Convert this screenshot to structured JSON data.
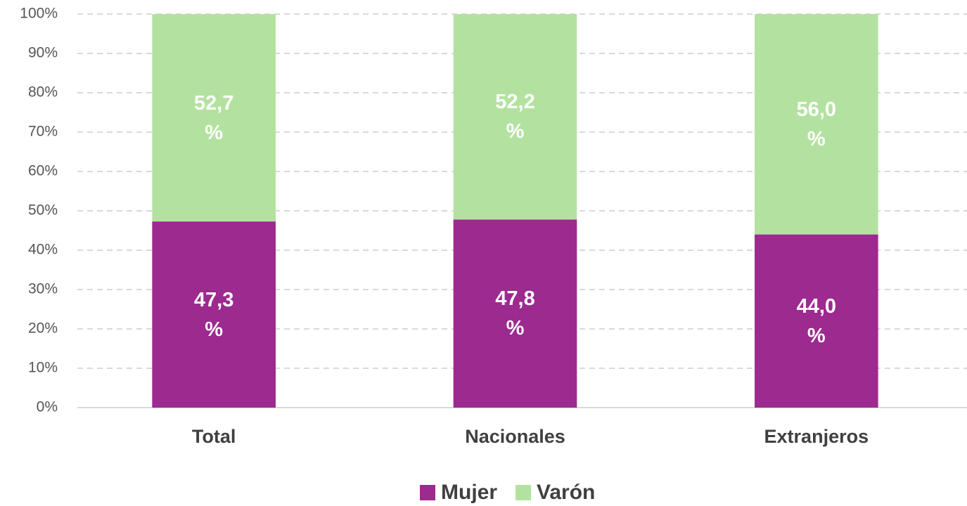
{
  "chart_data": {
    "type": "stacked_bar",
    "categories": [
      "Total",
      "Nacionales",
      "Extranjeros"
    ],
    "series": [
      {
        "name": "Mujer",
        "color": "#9c2a8f",
        "values": [
          47.3,
          47.8,
          44.0
        ],
        "value_labels": [
          "47,3 %",
          "47,8 %",
          "44,0 %"
        ]
      },
      {
        "name": "Varón",
        "color": "#b3e2a0",
        "values": [
          52.7,
          52.2,
          56.0
        ],
        "value_labels": [
          "52,7 %",
          "52,2 %",
          "56,0 %"
        ]
      }
    ],
    "ylim": [
      0,
      100
    ],
    "yticks": [
      {
        "value": 0,
        "label": "0%"
      },
      {
        "value": 10,
        "label": "10%"
      },
      {
        "value": 20,
        "label": "20%"
      },
      {
        "value": 30,
        "label": "30%"
      },
      {
        "value": 40,
        "label": "40%"
      },
      {
        "value": 50,
        "label": "50%"
      },
      {
        "value": 60,
        "label": "60%"
      },
      {
        "value": 70,
        "label": "70%"
      },
      {
        "value": 80,
        "label": "80%"
      },
      {
        "value": 90,
        "label": "90%"
      },
      {
        "value": 100,
        "label": "100%"
      }
    ],
    "grid": true,
    "legend": "bottom"
  }
}
